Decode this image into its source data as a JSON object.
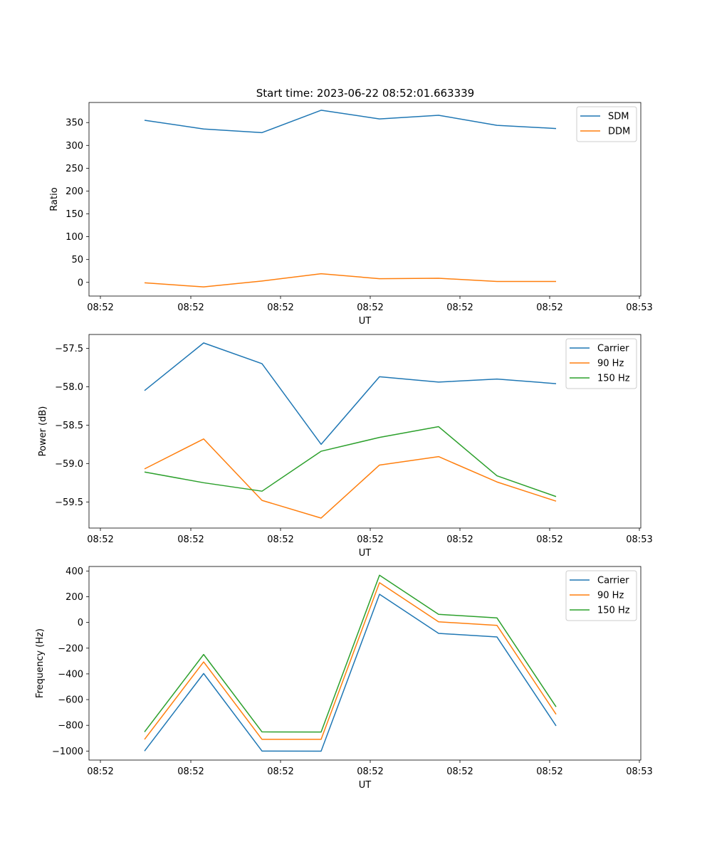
{
  "figure_title": "Start time: 2023-06-22 08:52:01.663339",
  "colors": {
    "blue": "#1f77b4",
    "orange": "#ff7f0e",
    "green": "#2ca02c"
  },
  "chart_data": [
    {
      "type": "line",
      "title": "Start time: 2023-06-22 08:52:01.663339",
      "xlabel": "UT",
      "ylabel": "Ratio",
      "x_tick_labels": [
        "08:52",
        "08:52",
        "08:52",
        "08:52",
        "08:52",
        "08:52",
        "08:53"
      ],
      "y_ticks": [
        0,
        50,
        100,
        150,
        200,
        250,
        300,
        350
      ],
      "y_tick_labels": [
        "0",
        "50",
        "100",
        "150",
        "200",
        "250",
        "300",
        "350"
      ],
      "ylim": [
        -30,
        394
      ],
      "grid": false,
      "legend_position": "top-right",
      "series": [
        {
          "name": "SDM",
          "color": "#1f77b4",
          "values": [
            355,
            336,
            328,
            377,
            358,
            366,
            344,
            337
          ]
        },
        {
          "name": "DDM",
          "color": "#ff7f0e",
          "values": [
            -1,
            -10,
            3,
            19,
            8,
            9,
            2,
            2
          ]
        }
      ]
    },
    {
      "type": "line",
      "xlabel": "UT",
      "ylabel": "Power (dB)",
      "x_tick_labels": [
        "08:52",
        "08:52",
        "08:52",
        "08:52",
        "08:52",
        "08:52",
        "08:53"
      ],
      "y_ticks": [
        -59.5,
        -59.0,
        -58.5,
        -58.0,
        -57.5
      ],
      "y_tick_labels": [
        "−59.5",
        "−59.0",
        "−58.5",
        "−58.0",
        "−57.5"
      ],
      "ylim": [
        -59.84,
        -57.32
      ],
      "grid": false,
      "legend_position": "top-right",
      "series": [
        {
          "name": "Carrier",
          "color": "#1f77b4",
          "values": [
            -58.05,
            -57.43,
            -57.7,
            -58.75,
            -57.87,
            -57.94,
            -57.9,
            -57.96
          ]
        },
        {
          "name": "90 Hz",
          "color": "#ff7f0e",
          "values": [
            -59.07,
            -58.68,
            -59.48,
            -59.71,
            -59.02,
            -58.91,
            -59.24,
            -59.49
          ]
        },
        {
          "name": "150 Hz",
          "color": "#2ca02c",
          "values": [
            -59.11,
            -59.25,
            -59.36,
            -58.84,
            -58.66,
            -58.52,
            -59.16,
            -59.43
          ]
        }
      ]
    },
    {
      "type": "line",
      "xlabel": "UT",
      "ylabel": "Frequency (Hz)",
      "x_tick_labels": [
        "08:52",
        "08:52",
        "08:52",
        "08:52",
        "08:52",
        "08:52",
        "08:53"
      ],
      "y_ticks": [
        -1000,
        -800,
        -600,
        -400,
        -200,
        0,
        200,
        400
      ],
      "y_tick_labels": [
        "−1000",
        "−800",
        "−600",
        "−400",
        "−200",
        "0",
        "200",
        "400"
      ],
      "ylim": [
        -1070,
        435
      ],
      "grid": false,
      "legend_position": "top-right",
      "series": [
        {
          "name": "Carrier",
          "color": "#1f77b4",
          "values": [
            -1000,
            -397,
            -1000,
            -1001,
            219,
            -85,
            -113,
            -804
          ]
        },
        {
          "name": "90 Hz",
          "color": "#ff7f0e",
          "values": [
            -909,
            -307,
            -909,
            -909,
            309,
            5,
            -23,
            -714
          ]
        },
        {
          "name": "150 Hz",
          "color": "#2ca02c",
          "values": [
            -851,
            -249,
            -851,
            -852,
            367,
            63,
            35,
            -656
          ]
        }
      ]
    }
  ]
}
